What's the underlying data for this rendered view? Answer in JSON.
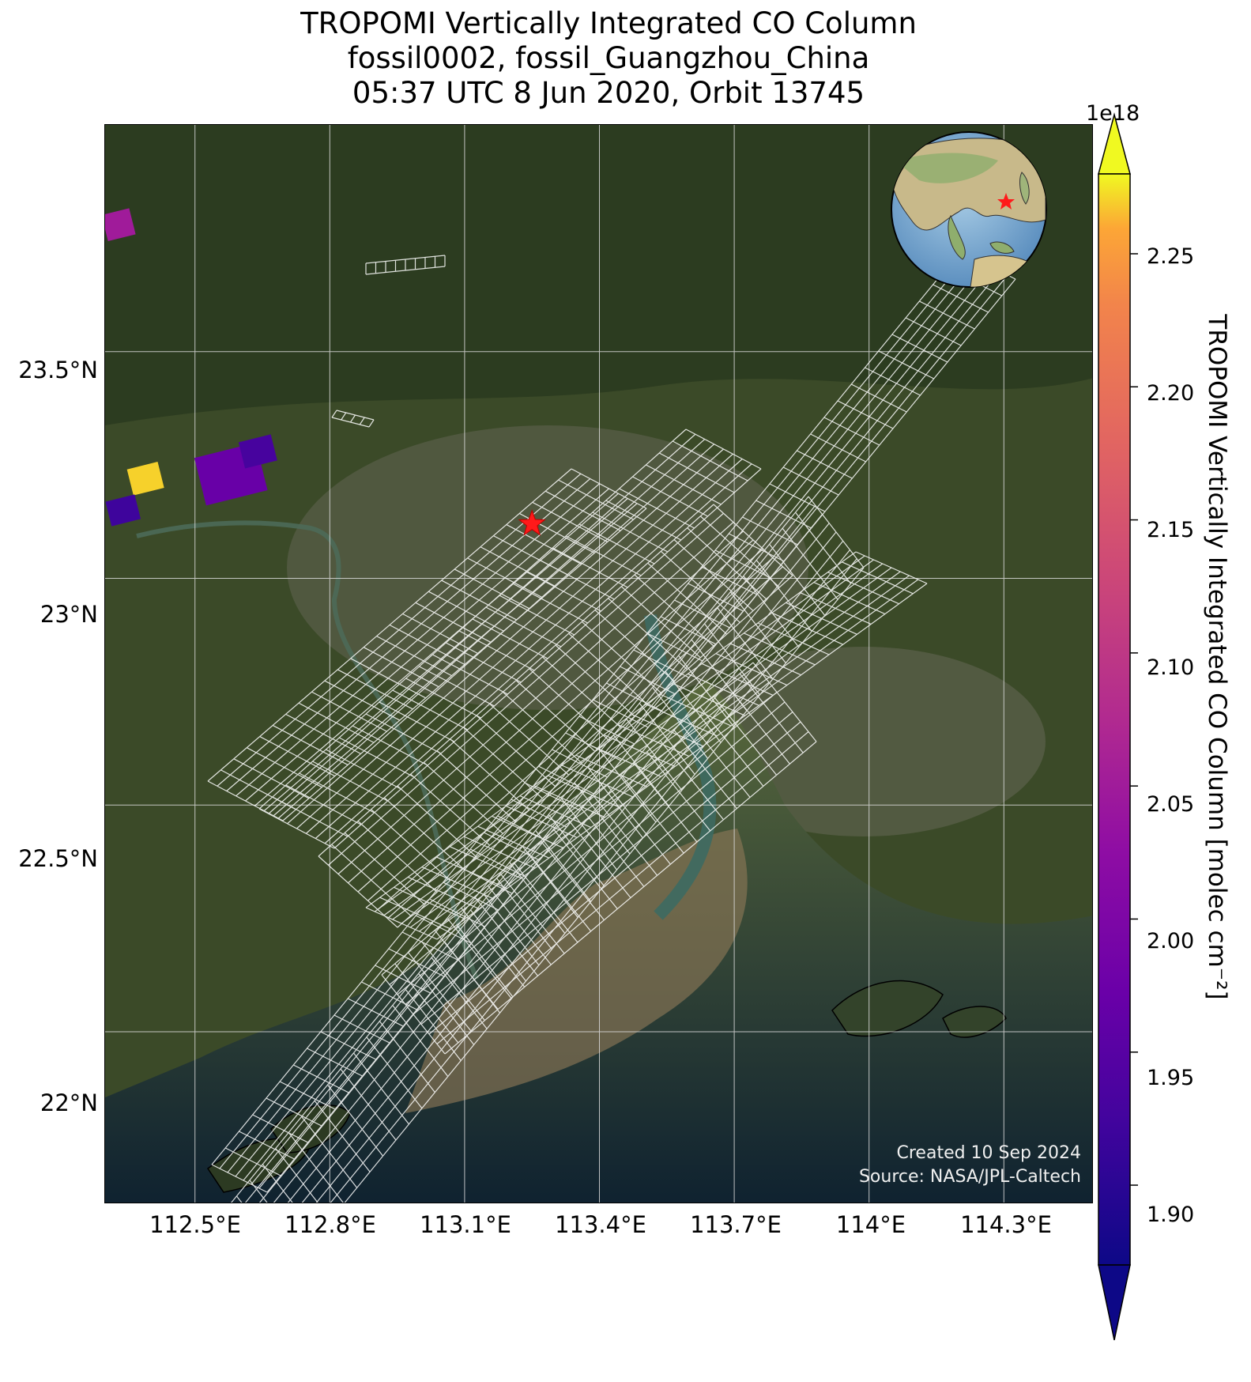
{
  "title": {
    "line1": "TROPOMI Vertically Integrated CO Column",
    "line2": "fossil0002, fossil_Guangzhou_China",
    "line3": "05:37 UTC 8 Jun 2020, Orbit 13745"
  },
  "axes": {
    "lat_ticks": [
      "23.5°N",
      "23°N",
      "22.5°N",
      "22°N"
    ],
    "lon_ticks": [
      "112.5°E",
      "112.8°E",
      "113.1°E",
      "113.4°E",
      "113.7°E",
      "114°E",
      "114.3°E"
    ],
    "lat_range": [
      21.62,
      24.0
    ],
    "lon_range": [
      112.3,
      114.5
    ]
  },
  "target": {
    "name": "fossil_Guangzhou_China",
    "marker": "red-star",
    "lon": 113.25,
    "lat": 23.12
  },
  "colored_pixels": [
    {
      "lon": 112.33,
      "lat": 23.78,
      "value": 2.05e+18
    },
    {
      "lon": 112.39,
      "lat": 23.22,
      "value": 2.27e+18
    },
    {
      "lon": 112.34,
      "lat": 23.15,
      "value": 1.92e+18
    },
    {
      "lon": 112.58,
      "lat": 23.23,
      "value": 1.97e+18
    },
    {
      "lon": 112.64,
      "lat": 23.28,
      "value": 1.93e+18
    }
  ],
  "colorbar": {
    "label": "TROPOMI Vertically Integrated CO Column [molec cm⁻²]",
    "exponent": "1e18",
    "ticks": [
      "2.25",
      "2.20",
      "2.15",
      "2.10",
      "2.05",
      "2.00",
      "1.95",
      "1.90"
    ],
    "range": [
      1.87,
      2.28
    ],
    "colormap": "plasma",
    "extend": "both"
  },
  "credits": {
    "created": "Created 10 Sep 2024",
    "source": "Source: NASA/JPL-Caltech"
  },
  "colors": {
    "land": "#3f4f2c",
    "water": "#23474a",
    "grid": "#dcdcdc",
    "footprint": "#ffffff",
    "star": "#ff1a1a"
  }
}
